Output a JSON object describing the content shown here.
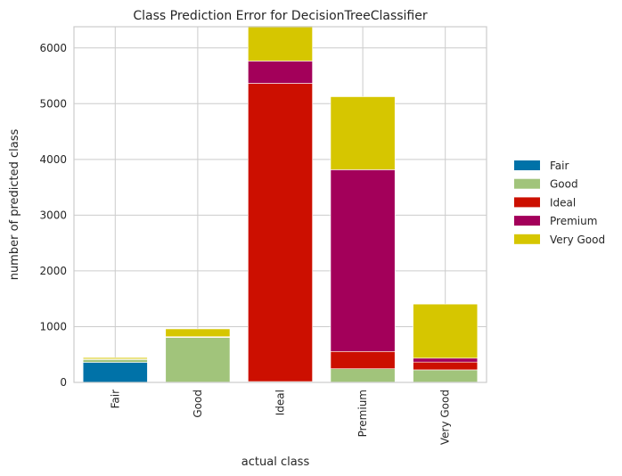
{
  "chart_data": {
    "type": "bar",
    "stacked": true,
    "title": "Class Prediction Error for DecisionTreeClassifier",
    "xlabel": "actual class",
    "ylabel": "number of predicted class",
    "categories": [
      "Fair",
      "Good",
      "Ideal",
      "Premium",
      "Very Good"
    ],
    "series": [
      {
        "name": "Fair",
        "color": "#0072a8",
        "values": [
          360,
          5,
          5,
          5,
          5
        ]
      },
      {
        "name": "Good",
        "color": "#a1c47b",
        "values": [
          50,
          800,
          10,
          240,
          220
        ]
      },
      {
        "name": "Ideal",
        "color": "#cc0f00",
        "values": [
          5,
          10,
          5350,
          310,
          140
        ]
      },
      {
        "name": "Premium",
        "color": "#a3005a",
        "values": [
          5,
          5,
          400,
          3260,
          70
        ]
      },
      {
        "name": "Very Good",
        "color": "#d6c600",
        "values": [
          25,
          140,
          630,
          1310,
          970
        ]
      }
    ],
    "ylim": [
      0,
      6380
    ],
    "yticks": [
      0,
      1000,
      2000,
      3000,
      4000,
      5000,
      6000
    ],
    "ytick_labels": [
      "0",
      "1000",
      "2000",
      "3000",
      "4000",
      "5000",
      "6000"
    ],
    "grid": true,
    "legend_position": "outside-right"
  }
}
